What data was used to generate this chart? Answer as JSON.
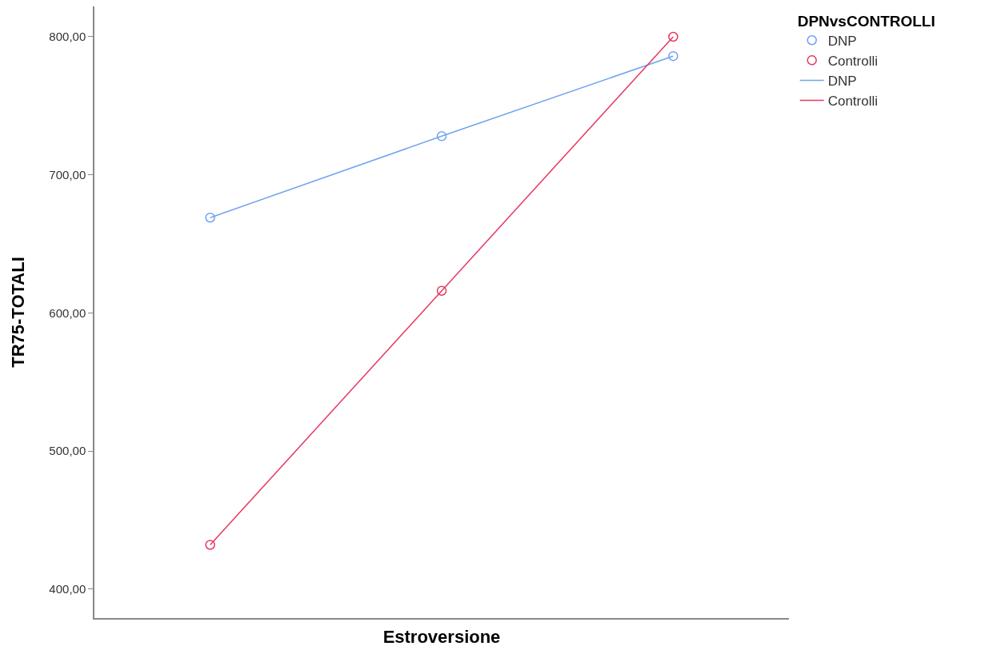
{
  "chart_data": {
    "type": "scatter",
    "xlabel": "Estroversione",
    "ylabel": "TR75-TOTALI",
    "legend_title": "DPNvsCONTROLLI",
    "categories": [
      null,
      null,
      null
    ],
    "series": [
      {
        "name": "DNP",
        "marker": "circle",
        "color": "#6fa3ef",
        "values": [
          669,
          728,
          786
        ]
      },
      {
        "name": "Controlli",
        "marker": "circle",
        "color": "#e8385f",
        "values": [
          432,
          616,
          800
        ]
      },
      {
        "name": "DNP",
        "type": "line",
        "marker": "none",
        "line_style": "solid",
        "color": "#6fa3ef",
        "values": [
          669,
          728,
          786
        ]
      },
      {
        "name": "Controlli",
        "type": "line",
        "marker": "none",
        "line_style": "solid",
        "color": "#e8385f",
        "values": [
          432,
          616,
          800
        ]
      }
    ],
    "ylim": [
      379,
      822
    ],
    "yticks": [
      {
        "value": 400,
        "label": "400,00"
      },
      {
        "value": 500,
        "label": "500,00"
      },
      {
        "value": 600,
        "label": "600,00"
      },
      {
        "value": 700,
        "label": "700,00"
      },
      {
        "value": 800,
        "label": "800,00"
      }
    ],
    "tick_labels": "y",
    "grid": false,
    "legend": "top right"
  }
}
